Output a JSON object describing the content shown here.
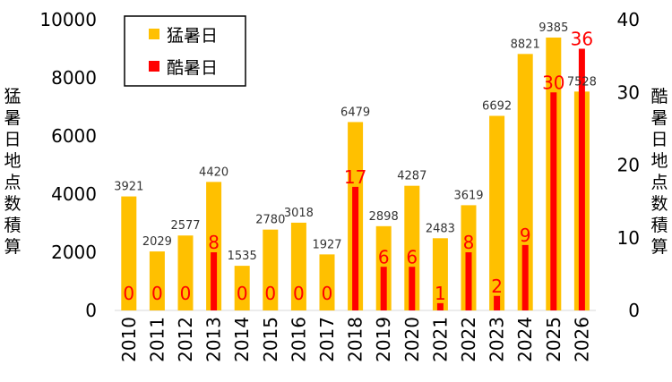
{
  "chart_data": {
    "type": "bar",
    "categories": [
      "2010",
      "2011",
      "2012",
      "2013",
      "2014",
      "2015",
      "2016",
      "2017",
      "2018",
      "2019",
      "2020",
      "2021",
      "2022",
      "2023",
      "2024",
      "2025",
      "2026"
    ],
    "series": [
      {
        "name": "猛暑日",
        "axis": "left",
        "color": "#ffc000",
        "values": [
          3921,
          2029,
          2577,
          4420,
          1535,
          2780,
          3018,
          1927,
          6479,
          2898,
          4287,
          2483,
          3619,
          6692,
          8821,
          9385,
          7528
        ]
      },
      {
        "name": "酷暑日",
        "axis": "right",
        "color": "#ff0000",
        "values": [
          0,
          0,
          0,
          8,
          0,
          0,
          0,
          0,
          17,
          6,
          6,
          1,
          8,
          2,
          9,
          30,
          36
        ]
      }
    ],
    "ylabel_left": "猛暑日地点数積算",
    "ylabel_right": "酷暑日地点数積算",
    "ylim_left": [
      0,
      10000
    ],
    "yticks_left": [
      "0",
      "2000",
      "4000",
      "6000",
      "8000",
      "10000"
    ],
    "ylim_right": [
      0,
      40
    ],
    "yticks_right": [
      "0",
      "10",
      "20",
      "30",
      "40"
    ],
    "legend": {
      "position": "top-left",
      "entries": [
        "猛暑日",
        "酷暑日"
      ]
    },
    "grid": false
  }
}
